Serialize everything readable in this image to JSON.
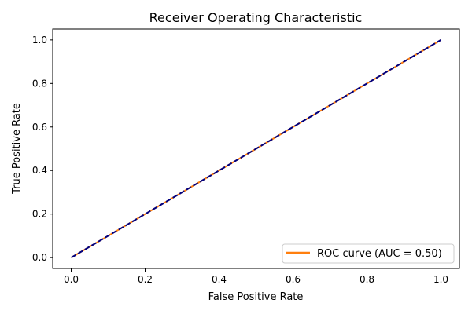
{
  "chart_data": {
    "type": "line",
    "title": "Receiver Operating Characteristic",
    "xlabel": "False Positive Rate",
    "ylabel": "True Positive Rate",
    "xlim": [
      -0.05,
      1.05
    ],
    "ylim": [
      -0.05,
      1.05
    ],
    "xticks": [
      0.0,
      0.2,
      0.4,
      0.6,
      0.8,
      1.0
    ],
    "yticks": [
      0.0,
      0.2,
      0.4,
      0.6,
      0.8,
      1.0
    ],
    "xtick_labels": [
      "0.0",
      "0.2",
      "0.4",
      "0.6",
      "0.8",
      "1.0"
    ],
    "ytick_labels": [
      "0.0",
      "0.2",
      "0.4",
      "0.6",
      "0.8",
      "1.0"
    ],
    "grid": false,
    "legend_position": "lower-right",
    "series": [
      {
        "name": "ROC curve (AUC = 0.50)",
        "color": "#ff7f0e",
        "line_style": "solid",
        "x": [
          0.0,
          1.0
        ],
        "y": [
          0.0,
          1.0
        ]
      },
      {
        "color": "#000080",
        "line_style": "dashed",
        "x": [
          0.0,
          1.0
        ],
        "y": [
          0.0,
          1.0
        ]
      }
    ]
  }
}
